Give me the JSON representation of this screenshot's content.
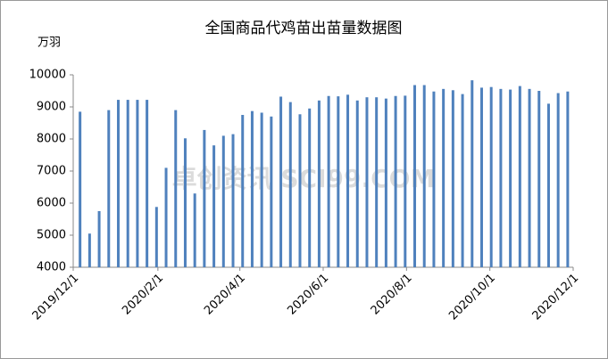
{
  "chart_data": {
    "type": "bar",
    "title": "全国商品代鸡苗出苗量数据图",
    "y_label": "万羽",
    "watermark": "卓创资讯 SCI99.COM",
    "color": "#4f81bd",
    "x": [
      "2019/12/6",
      "2019/12/13",
      "2019/12/20",
      "2019/12/27",
      "2020/1/3",
      "2020/1/10",
      "2020/1/17",
      "2020/1/24",
      "2020/1/31",
      "2020/2/7",
      "2020/2/14",
      "2020/2/21",
      "2020/2/28",
      "2020/3/6",
      "2020/3/13",
      "2020/3/20",
      "2020/3/27",
      "2020/4/3",
      "2020/4/10",
      "2020/4/17",
      "2020/4/24",
      "2020/5/1",
      "2020/5/8",
      "2020/5/15",
      "2020/5/22",
      "2020/5/29",
      "2020/6/5",
      "2020/6/12",
      "2020/6/19",
      "2020/6/26",
      "2020/7/3",
      "2020/7/10",
      "2020/7/17",
      "2020/7/24",
      "2020/7/31",
      "2020/8/7",
      "2020/8/14",
      "2020/8/21",
      "2020/8/28",
      "2020/9/4",
      "2020/9/11",
      "2020/9/18",
      "2020/9/25",
      "2020/10/2",
      "2020/10/9",
      "2020/10/16",
      "2020/10/23",
      "2020/10/30",
      "2020/11/6",
      "2020/11/13",
      "2020/11/20",
      "2020/11/27"
    ],
    "values": [
      8850,
      5050,
      5750,
      8900,
      9220,
      9220,
      9220,
      9220,
      5880,
      7100,
      8900,
      8020,
      6300,
      8280,
      7800,
      8100,
      8150,
      8750,
      8870,
      8820,
      8700,
      9320,
      9150,
      8770,
      8950,
      9200,
      9340,
      9330,
      9380,
      9200,
      9300,
      9300,
      9260,
      9340,
      9350,
      9680,
      9680,
      9480,
      9560,
      9520,
      9400,
      9830,
      9600,
      9620,
      9560,
      9540,
      9650,
      9560,
      9500,
      9100,
      9430,
      9480
    ],
    "xlim": [
      "2019/12/1",
      "2020/12/1"
    ],
    "xticks": [
      "2019/12/1",
      "2020/2/1",
      "2020/4/1",
      "2020/6/1",
      "2020/8/1",
      "2020/10/1",
      "2020/12/1"
    ],
    "ylim": [
      4000,
      10000
    ],
    "yticks": [
      4000,
      5000,
      6000,
      7000,
      8000,
      9000,
      10000
    ],
    "grid": false
  }
}
